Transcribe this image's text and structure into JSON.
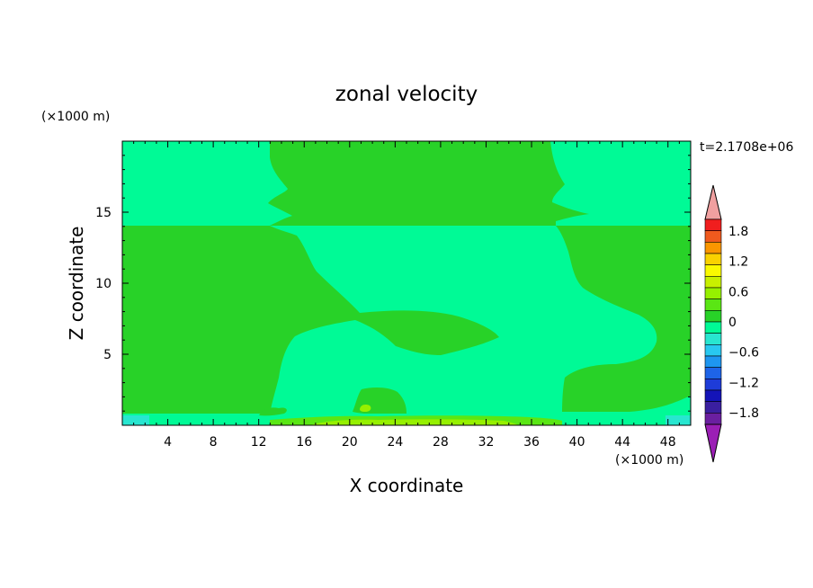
{
  "chart_data": {
    "type": "heatmap",
    "title": "zonal velocity",
    "xlabel": "X coordinate",
    "ylabel": "Z coordinate",
    "x_unit": "(×1000 m)",
    "y_unit": "(×1000 m)",
    "time_label": "t=2.1708e+06",
    "xlim": [
      0,
      50
    ],
    "ylim": [
      0,
      20
    ],
    "x_ticks": [
      "4",
      "8",
      "12",
      "16",
      "20",
      "24",
      "28",
      "32",
      "36",
      "40",
      "44",
      "48"
    ],
    "y_ticks": [
      "5",
      "10",
      "15"
    ],
    "colorbar": {
      "levels": [
        -1.8,
        -1.6,
        -1.4,
        -1.2,
        -1.0,
        -0.8,
        -0.6,
        -0.4,
        -0.2,
        0,
        0.2,
        0.4,
        0.6,
        0.8,
        1.0,
        1.2,
        1.4,
        1.6,
        1.8
      ],
      "tick_labels": [
        "1.8",
        "1.2",
        "0.6",
        "0",
        "−0.6",
        "−1.2",
        "−1.8"
      ],
      "colors": [
        "#9b1fb5",
        "#6b1fa0",
        "#3a1fa0",
        "#1414b8",
        "#1e3cd8",
        "#1e64e8",
        "#1e96f0",
        "#28c8f0",
        "#28e6d0",
        "#00fa96",
        "#28d228",
        "#5ae614",
        "#96f000",
        "#c8f000",
        "#fafa00",
        "#fad200",
        "#fa9600",
        "#f05a1e",
        "#f01e1e",
        "#f0a0a0"
      ]
    },
    "regions": [
      {
        "name": "background",
        "value_range": [
          -0.2,
          0
        ],
        "color": "#00fa96"
      },
      {
        "name": "upper-middle positive band",
        "value_range": [
          0,
          0.2
        ],
        "color": "#28d228"
      },
      {
        "name": "mid-left positive region",
        "value_range": [
          0,
          0.2
        ],
        "color": "#28d228"
      },
      {
        "name": "right positive region",
        "value_range": [
          0,
          0.2
        ],
        "color": "#28d228"
      },
      {
        "name": "near-surface patches",
        "value_range": [
          0.2,
          0.6
        ],
        "color": "#96f000"
      }
    ]
  }
}
